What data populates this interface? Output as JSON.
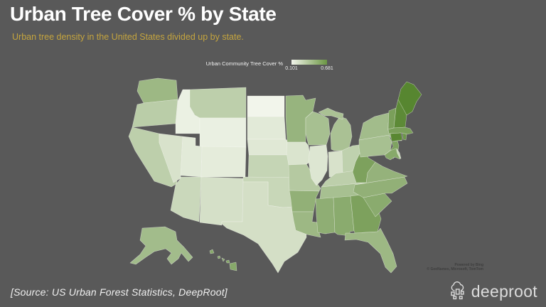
{
  "slide": {
    "title": "Urban Tree Cover % by State",
    "title_color": "#ffffff",
    "subtitle": "Urban tree density in the United States divided up by state.",
    "subtitle_color": "#c4a43e",
    "background": "#595959",
    "source_note": "[Source: US Urban Forest Statistics, DeepRoot]"
  },
  "legend": {
    "label": "Urban Community Tree Cover %",
    "min": "0.101",
    "max": "0.681",
    "gradient_start": "#f2f5eb",
    "gradient_end": "#6b9643"
  },
  "map": {
    "attribution_line1": "Powered by Bing",
    "attribution_line2": "© GeoNames, Microsoft, TomTom"
  },
  "branding": {
    "logo_text": "deeproot"
  },
  "chart_data": {
    "type": "choropleth_map",
    "title": "Urban Tree Cover % by State",
    "metric": "Urban Community Tree Cover %",
    "region": "United States",
    "scale": {
      "min": 0.101,
      "max": 0.681,
      "min_color": "#f2f5eb",
      "max_color": "#578630"
    },
    "legend_position": "top-center",
    "states": [
      {
        "id": "WA",
        "name": "Washington",
        "value": 0.42,
        "fill": "#9db884"
      },
      {
        "id": "OR",
        "name": "Oregon",
        "value": 0.31,
        "fill": "#bacda8"
      },
      {
        "id": "CA",
        "name": "California",
        "value": 0.3,
        "fill": "#bdcfab"
      },
      {
        "id": "NV",
        "name": "Nevada",
        "value": 0.2,
        "fill": "#d8e2cb"
      },
      {
        "id": "ID",
        "name": "Idaho",
        "value": 0.125,
        "fill": "#ebf1e3"
      },
      {
        "id": "MT",
        "name": "Montana",
        "value": 0.3,
        "fill": "#bdcfab"
      },
      {
        "id": "WY",
        "name": "Wyoming",
        "value": 0.13,
        "fill": "#eaf0e2"
      },
      {
        "id": "UT",
        "name": "Utah",
        "value": 0.16,
        "fill": "#e2ead8"
      },
      {
        "id": "CO",
        "name": "Colorado",
        "value": 0.15,
        "fill": "#e5ecdb"
      },
      {
        "id": "AZ",
        "name": "Arizona",
        "value": 0.25,
        "fill": "#cad8bb"
      },
      {
        "id": "NM",
        "name": "New Mexico",
        "value": 0.21,
        "fill": "#d5e0c8"
      },
      {
        "id": "ND",
        "name": "North Dakota",
        "value": 0.101,
        "fill": "#f2f5eb"
      },
      {
        "id": "SD",
        "name": "South Dakota",
        "value": 0.16,
        "fill": "#e2ead8"
      },
      {
        "id": "NE",
        "name": "Nebraska",
        "value": 0.17,
        "fill": "#e0e8d5"
      },
      {
        "id": "KS",
        "name": "Kansas",
        "value": 0.27,
        "fill": "#c5d5b5"
      },
      {
        "id": "OK",
        "name": "Oklahoma",
        "value": 0.26,
        "fill": "#c8d7b8"
      },
      {
        "id": "TX",
        "name": "Texas",
        "value": 0.215,
        "fill": "#d4dfc6"
      },
      {
        "id": "MN",
        "name": "Minnesota",
        "value": 0.44,
        "fill": "#97b47e"
      },
      {
        "id": "IA",
        "name": "Iowa",
        "value": 0.19,
        "fill": "#dae4ce"
      },
      {
        "id": "MO",
        "name": "Missouri",
        "value": 0.33,
        "fill": "#b5c9a1"
      },
      {
        "id": "AR",
        "name": "Arkansas",
        "value": 0.46,
        "fill": "#92b077"
      },
      {
        "id": "LA",
        "name": "Louisiana",
        "value": 0.42,
        "fill": "#9db884"
      },
      {
        "id": "WI",
        "name": "Wisconsin",
        "value": 0.38,
        "fill": "#a7c091"
      },
      {
        "id": "IL",
        "name": "Illinois",
        "value": 0.18,
        "fill": "#dde6d2"
      },
      {
        "id": "MI",
        "name": "Michigan",
        "value": 0.37,
        "fill": "#aac194"
      },
      {
        "id": "IN",
        "name": "Indiana",
        "value": 0.2,
        "fill": "#d8e2cb"
      },
      {
        "id": "OH",
        "name": "Ohio",
        "value": 0.29,
        "fill": "#bfd1ae"
      },
      {
        "id": "KY",
        "name": "Kentucky",
        "value": 0.3,
        "fill": "#bdcfab"
      },
      {
        "id": "TN",
        "name": "Tennessee",
        "value": 0.38,
        "fill": "#a7c091"
      },
      {
        "id": "MS",
        "name": "Mississippi",
        "value": 0.47,
        "fill": "#8fae74"
      },
      {
        "id": "AL",
        "name": "Alabama",
        "value": 0.49,
        "fill": "#8aab6e"
      },
      {
        "id": "GA",
        "name": "Georgia",
        "value": 0.54,
        "fill": "#7da15d"
      },
      {
        "id": "FL",
        "name": "Florida",
        "value": 0.42,
        "fill": "#9db884"
      },
      {
        "id": "SC",
        "name": "South Carolina",
        "value": 0.49,
        "fill": "#8aab6e"
      },
      {
        "id": "NC",
        "name": "North Carolina",
        "value": 0.46,
        "fill": "#92b077"
      },
      {
        "id": "VA",
        "name": "Virginia",
        "value": 0.45,
        "fill": "#95b27b"
      },
      {
        "id": "WV",
        "name": "West Virginia",
        "value": 0.54,
        "fill": "#7da15d"
      },
      {
        "id": "PA",
        "name": "Pennsylvania",
        "value": 0.38,
        "fill": "#a7c091"
      },
      {
        "id": "NY",
        "name": "New York",
        "value": 0.4,
        "fill": "#a2bc8b"
      },
      {
        "id": "VT",
        "name": "Vermont",
        "value": 0.55,
        "fill": "#7a9f5a"
      },
      {
        "id": "NH",
        "name": "New Hampshire",
        "value": 0.66,
        "fill": "#5d8a37"
      },
      {
        "id": "ME",
        "name": "Maine",
        "value": 0.681,
        "fill": "#578630"
      },
      {
        "id": "MA",
        "name": "Massachusetts",
        "value": 0.55,
        "fill": "#7a9f5a"
      },
      {
        "id": "RI",
        "name": "Rhode Island",
        "value": 0.6,
        "fill": "#6d964a"
      },
      {
        "id": "CT",
        "name": "Connecticut",
        "value": 0.674,
        "fill": "#598732"
      },
      {
        "id": "NJ",
        "name": "New Jersey",
        "value": 0.53,
        "fill": "#7fa361"
      },
      {
        "id": "DE",
        "name": "Delaware",
        "value": 0.25,
        "fill": "#cad8bb"
      },
      {
        "id": "MD",
        "name": "Maryland",
        "value": 0.5,
        "fill": "#87a96a"
      },
      {
        "id": "AK",
        "name": "Alaska",
        "value": 0.4,
        "fill": "#a2bc8b"
      },
      {
        "id": "HI",
        "name": "Hawaii",
        "value": 0.5,
        "fill": "#87a96a"
      }
    ]
  }
}
